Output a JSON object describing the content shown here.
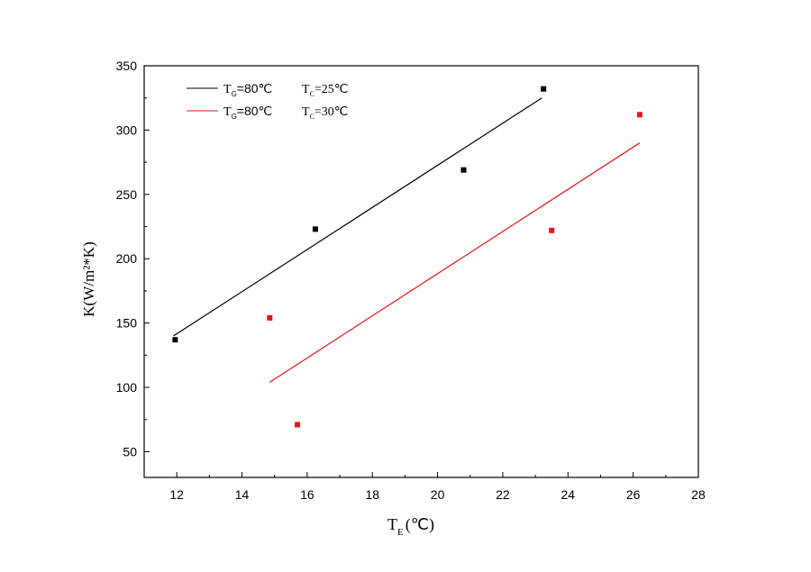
{
  "chart_data": {
    "type": "scatter",
    "xlabel": {
      "main": "T",
      "sub": "E",
      "unit": "(℃)"
    },
    "ylabel": "K(W/m²*K)",
    "xlim": [
      11,
      28
    ],
    "ylim": [
      30,
      350
    ],
    "xticks": [
      12,
      14,
      16,
      18,
      20,
      22,
      24,
      26,
      28
    ],
    "yticks": [
      50,
      100,
      150,
      200,
      250,
      300,
      350
    ],
    "grid": false,
    "legend_position": "top-left",
    "series": [
      {
        "legend": {
          "tg_main": "T",
          "tg_sub": "G",
          "tg_value": "=80℃",
          "tc_main": "T",
          "tc_sub": "C",
          "tc_value": "=25℃"
        },
        "color": "#000000",
        "points": [
          {
            "x": 11.95,
            "y": 137
          },
          {
            "x": 16.25,
            "y": 223
          },
          {
            "x": 20.8,
            "y": 269
          },
          {
            "x": 23.25,
            "y": 332
          }
        ],
        "fit_line": [
          {
            "x": 11.9,
            "y": 140
          },
          {
            "x": 23.2,
            "y": 325
          }
        ]
      },
      {
        "legend": {
          "tg_main": "T",
          "tg_sub": "G",
          "tg_value": "=80℃",
          "tc_main": "T",
          "tc_sub": "C",
          "tc_value": "=30℃"
        },
        "color": "#e8141a",
        "points": [
          {
            "x": 14.85,
            "y": 154
          },
          {
            "x": 15.7,
            "y": 71
          },
          {
            "x": 23.5,
            "y": 222
          },
          {
            "x": 26.2,
            "y": 312
          }
        ],
        "fit_line": [
          {
            "x": 14.85,
            "y": 104
          },
          {
            "x": 26.2,
            "y": 290
          }
        ]
      }
    ]
  }
}
